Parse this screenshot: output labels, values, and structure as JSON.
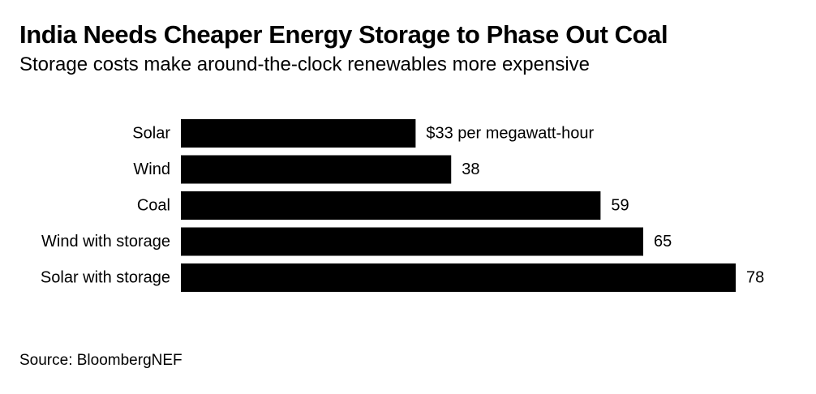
{
  "title": "India Needs Cheaper Energy Storage to Phase Out Coal",
  "subtitle": "Storage costs make around-the-clock renewables more expensive",
  "source": "Source: BloombergNEF",
  "chart_data": {
    "type": "bar",
    "orientation": "horizontal",
    "categories": [
      "Solar",
      "Wind",
      "Coal",
      "Wind with storage",
      "Solar with storage"
    ],
    "values": [
      33,
      38,
      59,
      65,
      78
    ],
    "data_labels": [
      "$33 per megawatt-hour",
      "38",
      "59",
      "65",
      "78"
    ],
    "unit": "$ per megawatt-hour",
    "xlim": [
      0,
      78
    ],
    "grid": false,
    "legend": "none",
    "bar_color": "#000000"
  }
}
